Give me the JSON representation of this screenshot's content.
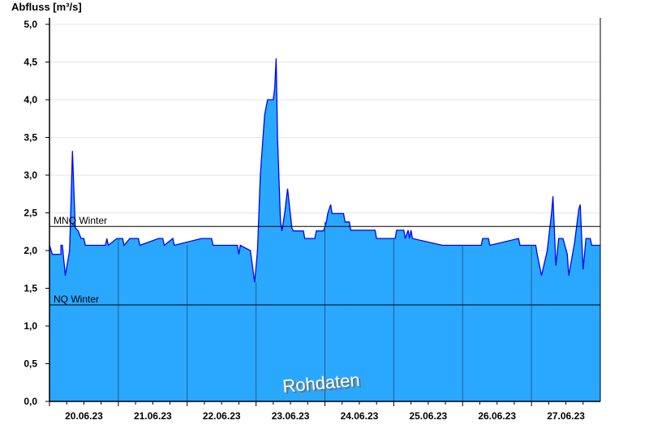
{
  "chart_data": {
    "type": "area",
    "title": "",
    "xlabel": "",
    "ylabel": "Abfluss [m³/s]",
    "ylim": [
      0,
      5.0
    ],
    "xlim": [
      "20.06.23 00:00",
      "28.06.23 00:00"
    ],
    "yticks": [
      "0,0",
      "0,5",
      "1,0",
      "1,5",
      "2,0",
      "2,5",
      "3,0",
      "3,5",
      "4,0",
      "4,5",
      "5,0"
    ],
    "xticks": [
      "20.06.23",
      "21.06.23",
      "22.06.23",
      "23.06.23",
      "24.06.23",
      "25.06.23",
      "26.06.23",
      "27.06.23"
    ],
    "grid": true,
    "colors": {
      "fill": "#2aa8ff",
      "line": "#0000ff",
      "day_separator": "#1f5f8f",
      "grid": "#e6e6e6"
    },
    "reference_lines": [
      {
        "label": "MNQ Winter",
        "value": 2.32
      },
      {
        "label": "NQ Winter",
        "value": 1.28
      }
    ],
    "watermark": "Rohdaten",
    "series": [
      {
        "points": [
          [
            "20.06.23 00:00",
            2.07
          ],
          [
            "20.06.23 01:00",
            1.95
          ],
          [
            "20.06.23 04:00",
            1.95
          ],
          [
            "20.06.23 04:00",
            2.07
          ],
          [
            "20.06.23 04:30",
            2.07
          ],
          [
            "20.06.23 05:30",
            1.67
          ],
          [
            "20.06.23 07:00",
            2.0
          ],
          [
            "20.06.23 08:00",
            3.32
          ],
          [
            "20.06.23 09:00",
            2.3
          ],
          [
            "20.06.23 10:00",
            2.26
          ],
          [
            "20.06.23 11:00",
            2.16
          ],
          [
            "20.06.23 12:00",
            2.16
          ],
          [
            "20.06.23 12:30",
            2.07
          ],
          [
            "20.06.23 19:30",
            2.07
          ],
          [
            "20.06.23 20:00",
            2.16
          ],
          [
            "20.06.23 20:30",
            2.07
          ],
          [
            "20.06.23 23:30",
            2.16
          ],
          [
            "21.06.23 01:30",
            2.16
          ],
          [
            "21.06.23 02:00",
            2.07
          ],
          [
            "21.06.23 04:00",
            2.16
          ],
          [
            "21.06.23 07:00",
            2.16
          ],
          [
            "21.06.23 07:30",
            2.07
          ],
          [
            "21.06.23 14:00",
            2.16
          ],
          [
            "21.06.23 15:30",
            2.16
          ],
          [
            "21.06.23 16:00",
            2.07
          ],
          [
            "21.06.23 19:00",
            2.16
          ],
          [
            "21.06.23 19:30",
            2.07
          ],
          [
            "22.06.23 05:00",
            2.16
          ],
          [
            "22.06.23 08:30",
            2.16
          ],
          [
            "22.06.23 09:00",
            2.07
          ],
          [
            "22.06.23 17:30",
            2.07
          ],
          [
            "22.06.23 18:00",
            1.95
          ],
          [
            "22.06.23 18:30",
            2.07
          ],
          [
            "22.06.23 22:00",
            2.0
          ],
          [
            "22.06.23 23:30",
            1.58
          ],
          [
            "23.06.23 00:30",
            2.0
          ],
          [
            "23.06.23 01:30",
            3.0
          ],
          [
            "23.06.23 03:00",
            3.8
          ],
          [
            "23.06.23 04:00",
            4.0
          ],
          [
            "23.06.23 06:00",
            4.0
          ],
          [
            "23.06.23 06:30",
            4.15
          ],
          [
            "23.06.23 07:00",
            4.55
          ],
          [
            "23.06.23 07:30",
            3.5
          ],
          [
            "23.06.23 08:30",
            2.4
          ],
          [
            "23.06.23 09:00",
            2.26
          ],
          [
            "23.06.23 10:00",
            2.5
          ],
          [
            "23.06.23 11:00",
            2.82
          ],
          [
            "23.06.23 12:30",
            2.3
          ],
          [
            "23.06.23 13:00",
            2.26
          ],
          [
            "23.06.23 16:30",
            2.26
          ],
          [
            "23.06.23 17:00",
            2.16
          ],
          [
            "23.06.23 20:30",
            2.16
          ],
          [
            "23.06.23 21:00",
            2.26
          ],
          [
            "23.06.23 23:30",
            2.26
          ],
          [
            "24.06.23 00:30",
            2.38
          ],
          [
            "24.06.23 01:00",
            2.49
          ],
          [
            "24.06.23 02:00",
            2.61
          ],
          [
            "24.06.23 02:30",
            2.49
          ],
          [
            "24.06.23 06:30",
            2.49
          ],
          [
            "24.06.23 07:00",
            2.38
          ],
          [
            "24.06.23 08:30",
            2.38
          ],
          [
            "24.06.23 09:00",
            2.27
          ],
          [
            "24.06.23 17:30",
            2.27
          ],
          [
            "24.06.23 18:00",
            2.16
          ],
          [
            "25.06.23 00:30",
            2.16
          ],
          [
            "25.06.23 01:00",
            2.27
          ],
          [
            "25.06.23 03:30",
            2.27
          ],
          [
            "25.06.23 04:00",
            2.16
          ],
          [
            "25.06.23 05:00",
            2.27
          ],
          [
            "25.06.23 05:30",
            2.16
          ],
          [
            "25.06.23 06:00",
            2.27
          ],
          [
            "25.06.23 06:30",
            2.16
          ],
          [
            "25.06.23 17:00",
            2.07
          ],
          [
            "26.06.23 06:30",
            2.07
          ],
          [
            "26.06.23 07:00",
            2.16
          ],
          [
            "26.06.23 09:00",
            2.16
          ],
          [
            "26.06.23 09:30",
            2.07
          ],
          [
            "26.06.23 19:30",
            2.16
          ],
          [
            "26.06.23 20:00",
            2.07
          ],
          [
            "27.06.23 01:30",
            2.07
          ],
          [
            "27.06.23 02:00",
            1.95
          ],
          [
            "27.06.23 03:30",
            1.67
          ],
          [
            "27.06.23 05:30",
            2.0
          ],
          [
            "27.06.23 07:00",
            2.5
          ],
          [
            "27.06.23 07:30",
            2.72
          ],
          [
            "27.06.23 08:30",
            1.8
          ],
          [
            "27.06.23 09:30",
            2.16
          ],
          [
            "27.06.23 11:00",
            2.16
          ],
          [
            "27.06.23 12:30",
            1.95
          ],
          [
            "27.06.23 13:00",
            1.67
          ],
          [
            "27.06.23 15:00",
            2.1
          ],
          [
            "27.06.23 16:30",
            2.55
          ],
          [
            "27.06.23 17:00",
            2.61
          ],
          [
            "27.06.23 18:00",
            1.75
          ],
          [
            "27.06.23 19:00",
            2.16
          ],
          [
            "27.06.23 20:30",
            2.16
          ],
          [
            "27.06.23 21:00",
            2.07
          ],
          [
            "28.06.23 00:00",
            2.07
          ]
        ]
      }
    ]
  }
}
